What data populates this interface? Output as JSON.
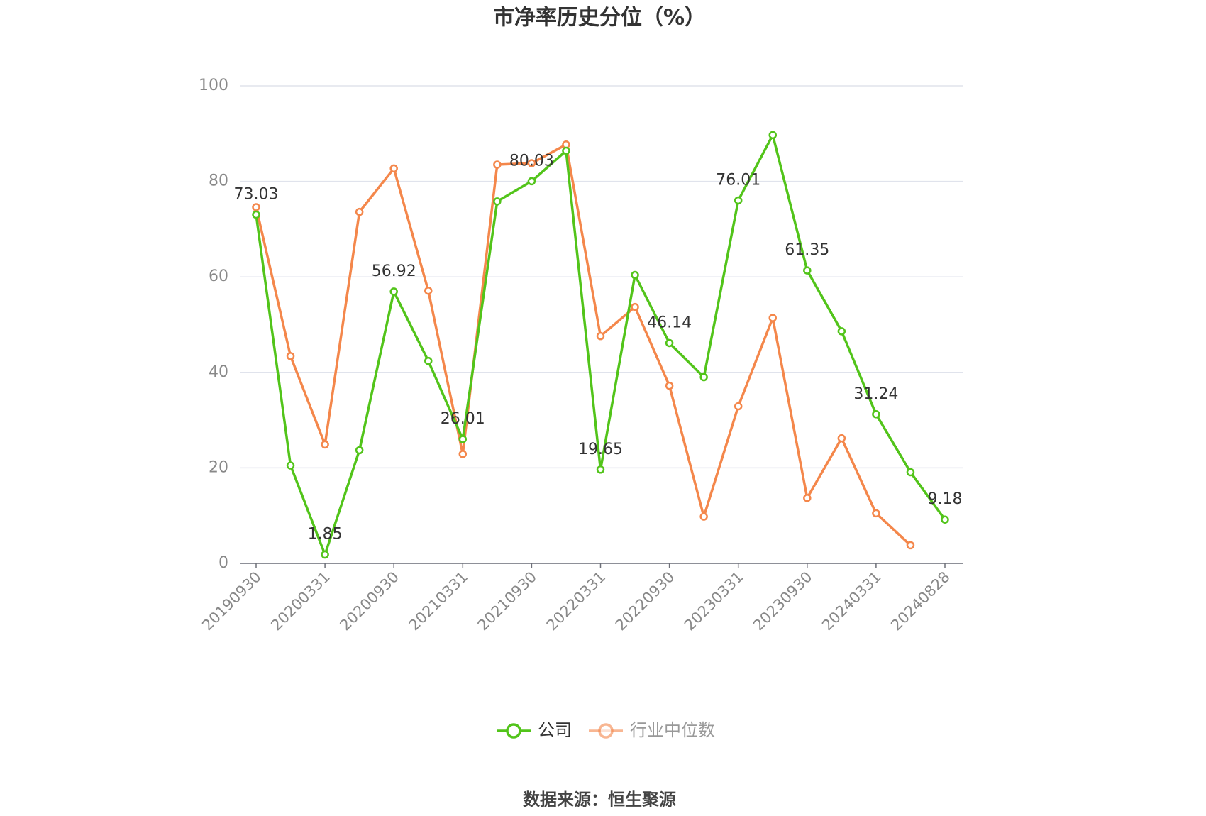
{
  "chart_data": {
    "type": "line",
    "title": "市净率历史分位（%）",
    "source": "数据来源：恒生聚源",
    "categories": [
      "20190930",
      null,
      "20200331",
      null,
      "20200930",
      null,
      "20210331",
      null,
      "20210930",
      null,
      "20220331",
      null,
      "20220930",
      null,
      "20230331",
      null,
      "20230930",
      null,
      "20240331",
      null,
      "20240828"
    ],
    "series": [
      {
        "name": "公司",
        "color": "#52c41a",
        "values": [
          73.03,
          20.5,
          1.85,
          23.7,
          56.92,
          42.4,
          26.01,
          75.8,
          80.03,
          86.4,
          19.65,
          60.4,
          46.14,
          39.0,
          76.01,
          89.7,
          61.35,
          48.6,
          31.24,
          19.1,
          9.18
        ]
      },
      {
        "name": "行业中位数",
        "color": "#f4874b",
        "values": [
          74.6,
          43.4,
          24.9,
          73.6,
          82.7,
          57.1,
          22.9,
          83.5,
          83.8,
          87.7,
          47.6,
          53.7,
          37.2,
          9.8,
          32.9,
          51.4,
          13.7,
          26.2,
          10.5,
          3.8,
          null
        ]
      }
    ],
    "ylim": [
      0,
      100
    ],
    "yticks": [
      0,
      20,
      40,
      60,
      80,
      100
    ],
    "grid": true
  }
}
